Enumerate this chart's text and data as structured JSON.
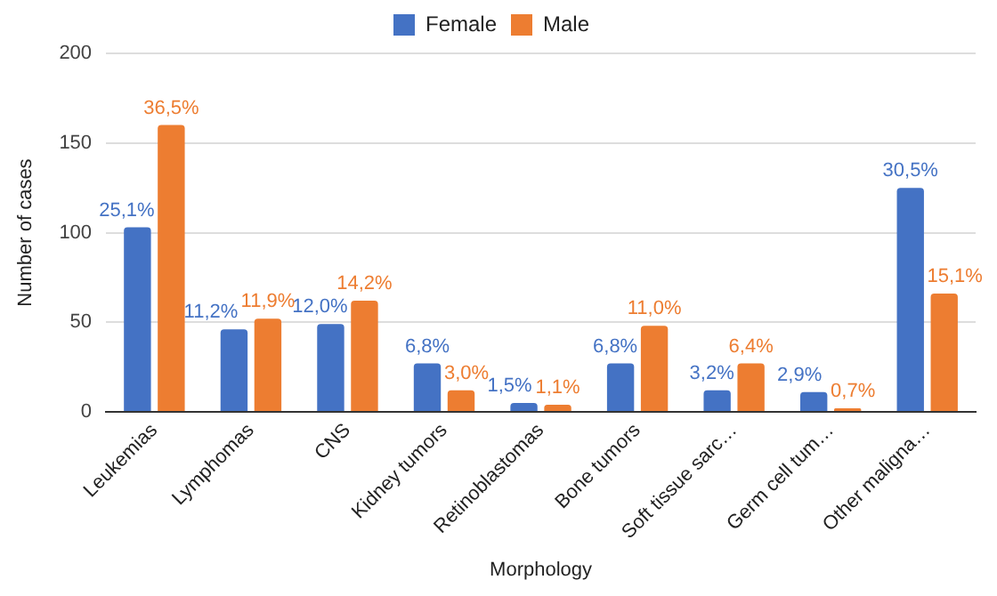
{
  "chart_data": {
    "type": "bar",
    "xlabel": "Morphology",
    "ylabel": "Number of cases",
    "categories": [
      "Leukemias",
      "Lymphomas",
      "CNS",
      "Kidney tumors",
      "Retinoblastomas",
      "Bone tumors",
      "Soft tissue sarc…",
      "Germ cell tum…",
      "Other maligna…"
    ],
    "series": [
      {
        "name": "Female",
        "color": "#4472c4",
        "values": [
          103,
          46,
          49,
          27,
          5,
          27,
          12,
          11,
          125
        ]
      },
      {
        "name": "Male",
        "color": "#ed7d31",
        "values": [
          160,
          52,
          62,
          12,
          4,
          48,
          27,
          2,
          66
        ]
      }
    ],
    "annotations": [
      {
        "text": "25,1%",
        "x": "Leukemias",
        "y": 103
      },
      {
        "text": "11,2%",
        "x": "Lymphomas",
        "y": 46
      },
      {
        "text": "12,0%",
        "x": "CNS",
        "y": 49
      },
      {
        "text": "6,8%",
        "x": "Kidney tumors",
        "y": 27
      },
      {
        "text": "1,5%",
        "x": "Retinoblastomas",
        "y": 5
      },
      {
        "text": "6,8%",
        "x": "Bone tumors",
        "y": 27
      },
      {
        "text": "3,2%",
        "x": "Soft tissue sarc…",
        "y": 12
      },
      {
        "text": "2,9%",
        "x": "Germ cell tum…",
        "y": 11
      },
      {
        "text": "30,5%",
        "x": "Other maligna…",
        "y": 125
      },
      {
        "text": "36,5%",
        "x": "Leukemias",
        "y": 160
      },
      {
        "text": "11,9%",
        "x": "Lymphomas",
        "y": 52
      },
      {
        "text": "14,2%",
        "x": "CNS",
        "y": 62
      },
      {
        "text": "3,0%",
        "x": "Kidney tumors",
        "y": 12
      },
      {
        "text": "1,1%",
        "x": "Retinoblastomas",
        "y": 4
      },
      {
        "text": "11,0%",
        "x": "Bone tumors",
        "y": 48
      },
      {
        "text": "6,4%",
        "x": "Soft tissue sarc…",
        "y": 27
      },
      {
        "text": "0,7%",
        "x": "Germ cell tum…",
        "y": 2
      },
      {
        "text": "15,1%",
        "x": "Other maligna…",
        "y": 66
      }
    ],
    "ylim": [
      0,
      200
    ],
    "yticks": [
      0,
      50,
      100,
      150,
      200
    ],
    "grid": "y",
    "legend": "top"
  }
}
